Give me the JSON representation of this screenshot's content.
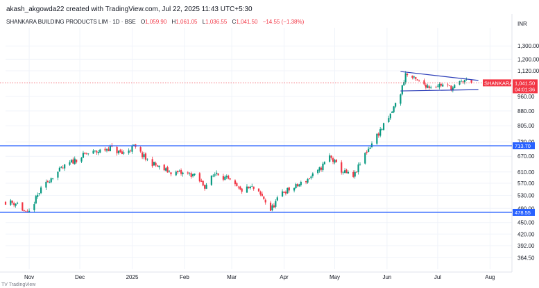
{
  "header": {
    "attribution": "akash_akgowda22 created with TradingView.com, Jul 22, 2025 11:43 UTC+5:30",
    "symbol": "SHANKARA BUILDING PRODUCTS LIM · 1D · BSE",
    "open_label": "O",
    "open": "1,059.90",
    "high_label": "H",
    "high": "1,061.05",
    "low_label": "L",
    "low": "1,036.55",
    "close_label": "C",
    "close": "1,041.50",
    "change": "−14.55 (−1.38%)"
  },
  "currency": "INR",
  "footer": "TV TradingView",
  "colors": {
    "up": "#089981",
    "down": "#f23645",
    "hline": "#2962ff",
    "trend": "#2a3cb8",
    "price_line": "#f23645",
    "grid": "#f0f3fa"
  },
  "chart_data": {
    "type": "candlestick",
    "title": "SHANKARA BUILDING PRODUCTS LIM · 1D · BSE",
    "y_scale": "log",
    "ylim": [
      340,
      1450
    ],
    "y_ticks": [
      "1,300.00",
      "1,200.00",
      "1,120.00",
      "960.00",
      "880.00",
      "805.00",
      "730.00",
      "670.00",
      "610.00",
      "570.00",
      "530.00",
      "490.00",
      "450.00",
      "420.00",
      "392.00",
      "364.50"
    ],
    "x_ticks": [
      "Nov",
      "Dec",
      "2025",
      "Feb",
      "Mar",
      "Apr",
      "May",
      "Jun",
      "Jul",
      "Aug"
    ],
    "x_range": [
      "2024-10-18",
      "2025-08-14"
    ],
    "horizontal_levels": [
      {
        "value": 713.7,
        "label": "713.70"
      },
      {
        "value": 478.55,
        "label": "478.55"
      }
    ],
    "trendlines": [
      {
        "from": {
          "date": "2025-06-09",
          "price": 1115
        },
        "to": {
          "date": "2025-07-21",
          "price": 1057
        }
      },
      {
        "from": {
          "date": "2025-06-09",
          "price": 992
        },
        "to": {
          "date": "2025-07-21",
          "price": 1000
        }
      }
    ],
    "last_price": {
      "value": 1041.5,
      "symbol_tag": "SHANKARA",
      "price_label": "1,041.50",
      "countdown": "04:01:36"
    },
    "close_path": [
      [
        "2024-10-18",
        510
      ],
      [
        "2024-10-25",
        505
      ],
      [
        "2024-10-31",
        470
      ],
      [
        "2024-11-07",
        540
      ],
      [
        "2024-11-14",
        590
      ],
      [
        "2024-11-21",
        625
      ],
      [
        "2024-11-28",
        655
      ],
      [
        "2024-12-05",
        680
      ],
      [
        "2024-12-12",
        690
      ],
      [
        "2024-12-19",
        705
      ],
      [
        "2024-12-26",
        680
      ],
      [
        "2025-01-02",
        710
      ],
      [
        "2025-01-09",
        660
      ],
      [
        "2025-01-16",
        630
      ],
      [
        "2025-01-23",
        610
      ],
      [
        "2025-01-30",
        605
      ],
      [
        "2025-02-06",
        600
      ],
      [
        "2025-02-13",
        560
      ],
      [
        "2025-02-20",
        610
      ],
      [
        "2025-02-27",
        580
      ],
      [
        "2025-03-06",
        545
      ],
      [
        "2025-03-13",
        555
      ],
      [
        "2025-03-20",
        520
      ],
      [
        "2025-03-24",
        485
      ],
      [
        "2025-03-31",
        540
      ],
      [
        "2025-04-07",
        555
      ],
      [
        "2025-04-14",
        580
      ],
      [
        "2025-04-21",
        610
      ],
      [
        "2025-04-28",
        670
      ],
      [
        "2025-05-05",
        615
      ],
      [
        "2025-05-12",
        590
      ],
      [
        "2025-05-19",
        680
      ],
      [
        "2025-05-26",
        760
      ],
      [
        "2025-06-02",
        840
      ],
      [
        "2025-06-09",
        980
      ],
      [
        "2025-06-12",
        1100
      ],
      [
        "2025-06-19",
        1050
      ],
      [
        "2025-06-26",
        1020
      ],
      [
        "2025-07-03",
        1030
      ],
      [
        "2025-07-10",
        1010
      ],
      [
        "2025-07-17",
        1060
      ],
      [
        "2025-07-21",
        1041.5
      ]
    ]
  }
}
